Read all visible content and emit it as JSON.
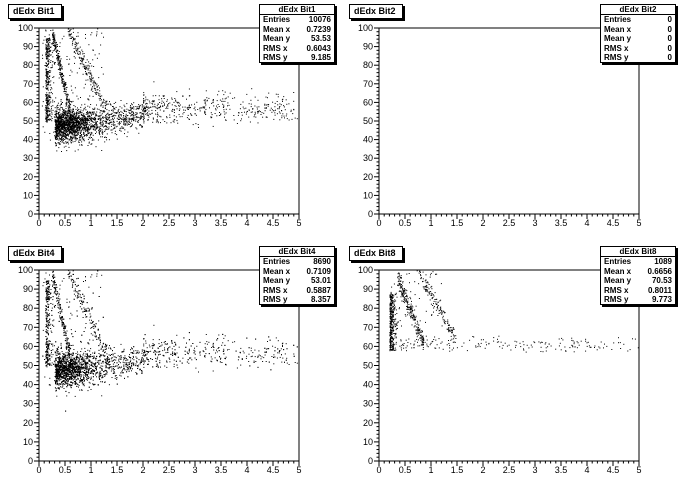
{
  "chart_data": [
    {
      "type": "scatter",
      "title": "dEdx Bit1",
      "xlim": [
        0,
        5
      ],
      "ylim": [
        0,
        100
      ],
      "x_ticks": [
        "0",
        "0.5",
        "1",
        "1.5",
        "2",
        "2.5",
        "3",
        "3.5",
        "4",
        "4.5",
        "5"
      ],
      "y_ticks": [
        "0",
        "10",
        "20",
        "30",
        "40",
        "50",
        "60",
        "70",
        "80",
        "90",
        "100"
      ],
      "stats": {
        "title": "dEdx Bit1",
        "rows": [
          {
            "label": "Entries",
            "value": "10076"
          },
          {
            "label": "Mean x",
            "value": "0.7239"
          },
          {
            "label": "Mean y",
            "value": "53.53"
          },
          {
            "label": "RMS x",
            "value": "0.6043"
          },
          {
            "label": "RMS y",
            "value": "9.185"
          }
        ]
      },
      "distribution": {
        "density": "high",
        "band_x_max": 5.0,
        "core_y": 48,
        "has_bands": true
      }
    },
    {
      "type": "scatter",
      "title": "dEdx Bit2",
      "xlim": [
        0,
        5
      ],
      "ylim": [
        0,
        100
      ],
      "x_ticks": [
        "0",
        "0.5",
        "1",
        "1.5",
        "2",
        "2.5",
        "3",
        "3.5",
        "4",
        "4.5",
        "5"
      ],
      "y_ticks": [
        "0",
        "10",
        "20",
        "30",
        "40",
        "50",
        "60",
        "70",
        "80",
        "90",
        "100"
      ],
      "stats": {
        "title": "dEdx Bit2",
        "rows": [
          {
            "label": "Entries",
            "value": "0"
          },
          {
            "label": "Mean x",
            "value": "0"
          },
          {
            "label": "Mean y",
            "value": "0"
          },
          {
            "label": "RMS x",
            "value": "0"
          },
          {
            "label": "RMS y",
            "value": "0"
          }
        ]
      },
      "distribution": {
        "density": "none"
      }
    },
    {
      "type": "scatter",
      "title": "dEdx Bit4",
      "xlim": [
        0,
        5
      ],
      "ylim": [
        0,
        100
      ],
      "x_ticks": [
        "0",
        "0.5",
        "1",
        "1.5",
        "2",
        "2.5",
        "3",
        "3.5",
        "4",
        "4.5",
        "5"
      ],
      "y_ticks": [
        "0",
        "10",
        "20",
        "30",
        "40",
        "50",
        "60",
        "70",
        "80",
        "90",
        "100"
      ],
      "stats": {
        "title": "dEdx Bit4",
        "rows": [
          {
            "label": "Entries",
            "value": "8690"
          },
          {
            "label": "Mean x",
            "value": "0.7109"
          },
          {
            "label": "Mean y",
            "value": "53.01"
          },
          {
            "label": "RMS x",
            "value": "0.5887"
          },
          {
            "label": "RMS y",
            "value": "8.357"
          }
        ]
      },
      "distribution": {
        "density": "high",
        "band_x_max": 5.0,
        "core_y": 48,
        "has_bands": true
      }
    },
    {
      "type": "scatter",
      "title": "dEdx Bit8",
      "xlim": [
        0,
        5
      ],
      "ylim": [
        0,
        100
      ],
      "x_ticks": [
        "0",
        "0.5",
        "1",
        "1.5",
        "2",
        "2.5",
        "3",
        "3.5",
        "4",
        "4.5",
        "5"
      ],
      "y_ticks": [
        "0",
        "10",
        "20",
        "30",
        "40",
        "50",
        "60",
        "70",
        "80",
        "90",
        "100"
      ],
      "stats": {
        "title": "dEdx Bit8",
        "rows": [
          {
            "label": "Entries",
            "value": "1089"
          },
          {
            "label": "Mean x",
            "value": "0.6656"
          },
          {
            "label": "Mean y",
            "value": "70.53"
          },
          {
            "label": "RMS x",
            "value": "0.8011"
          },
          {
            "label": "RMS y",
            "value": "9.773"
          }
        ]
      },
      "distribution": {
        "density": "low",
        "band_x_max": 5.0,
        "core_y": 61,
        "has_bands": true
      }
    }
  ]
}
